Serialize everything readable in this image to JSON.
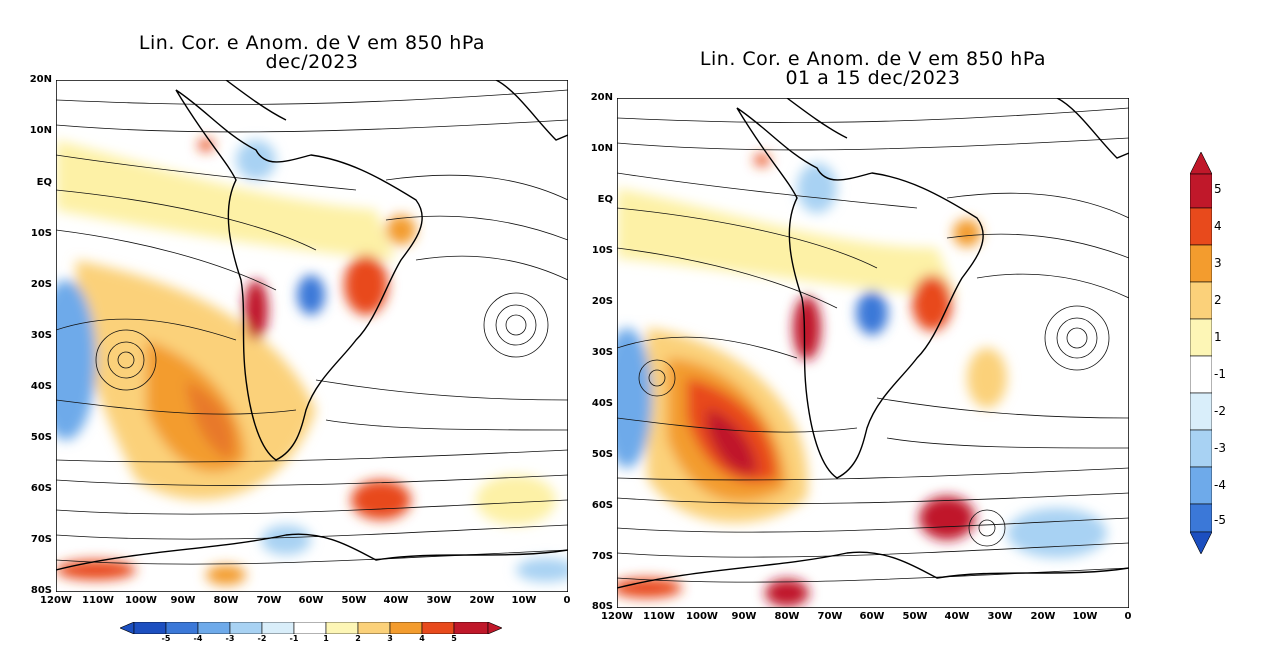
{
  "panels": [
    {
      "title_line1": "Lin. Cor. e Anom. de V em 850 hPa",
      "title_line2": "dec/2023",
      "lat_labels": [
        "20N",
        "10N",
        "EQ",
        "10S",
        "20S",
        "30S",
        "40S",
        "50S",
        "60S",
        "70S",
        "80S"
      ],
      "lon_labels": [
        "120W",
        "110W",
        "100W",
        "90W",
        "80W",
        "70W",
        "60W",
        "50W",
        "40W",
        "30W",
        "20W",
        "10W",
        "0"
      ]
    },
    {
      "title_line1": "Lin. Cor. e Anom. de V em 850 hPa",
      "title_line2": "01 a 15 dec/2023",
      "lat_labels": [
        "20N",
        "10N",
        "EQ",
        "10S",
        "20S",
        "30S",
        "40S",
        "50S",
        "60S",
        "70S",
        "80S"
      ],
      "lon_labels": [
        "120W",
        "110W",
        "100W",
        "90W",
        "80W",
        "70W",
        "60W",
        "50W",
        "40W",
        "30W",
        "20W",
        "10W",
        "0"
      ]
    }
  ],
  "colorbar_vertical": {
    "labels": [
      "5",
      "4",
      "3",
      "2",
      "1",
      "-1",
      "-2",
      "-3",
      "-4",
      "-5"
    ],
    "colors": [
      "#c0182a",
      "#e84a1c",
      "#f39c2e",
      "#fbd17a",
      "#fdf6b6",
      "#ffffff",
      "#d9eefa",
      "#a8d2f3",
      "#6eaaea",
      "#3b78d8",
      "#1c4fc0"
    ]
  },
  "colorbar_horizontal": {
    "labels": [
      "-5",
      "-4",
      "-3",
      "-2",
      "-1",
      "1",
      "2",
      "3",
      "4",
      "5"
    ]
  }
}
